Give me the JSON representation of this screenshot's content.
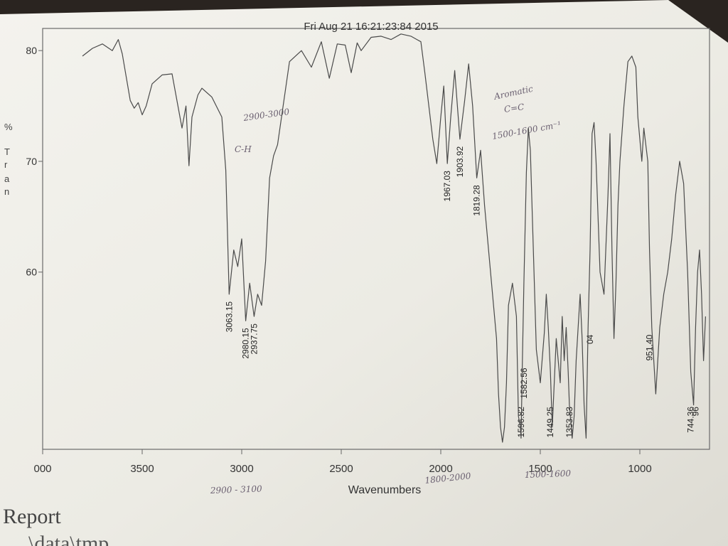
{
  "chart_data": {
    "type": "line",
    "title": "Fri Aug 21 16:21:23:84 2015",
    "xlabel": "Wavenumbers",
    "ylabel": "%T",
    "ylabel_letters": [
      "%",
      "T",
      "r",
      "a",
      "n"
    ],
    "xlim": [
      4000,
      650
    ],
    "ylim": [
      44,
      82
    ],
    "x_ticks": [
      "000",
      "3500",
      "3000",
      "2500",
      "2000",
      "1500",
      "1000"
    ],
    "y_ticks": [
      "80",
      "70",
      "60"
    ],
    "series": [
      {
        "x": [
          3800,
          3750,
          3700,
          3650,
          3620,
          3600,
          3560,
          3540,
          3520,
          3500,
          3480,
          3450,
          3400,
          3350,
          3300,
          3280,
          3265,
          3250,
          3220,
          3200,
          3150,
          3100,
          3080,
          3063.15,
          3040,
          3020,
          3000,
          2980.15,
          2960,
          2937.75,
          2920,
          2900,
          2880,
          2860,
          2840,
          2820,
          2800,
          2780,
          2760,
          2700,
          2650,
          2600,
          2560,
          2520,
          2480,
          2450,
          2420,
          2400,
          2350,
          2300,
          2250,
          2200,
          2150,
          2120,
          2100,
          2080,
          2060,
          2040,
          2020,
          2000,
          1985,
          1967.03,
          1950,
          1930,
          1903.92,
          1880,
          1860,
          1840,
          1819.28,
          1800,
          1780,
          1760,
          1740,
          1720,
          1710,
          1700,
          1690,
          1680,
          1670,
          1660,
          1640,
          1620,
          1610,
          1600,
          1596.82,
          1590,
          1582.56,
          1570,
          1560,
          1550,
          1540,
          1530,
          1520,
          1500,
          1480,
          1470,
          1460,
          1449.25,
          1440,
          1430,
          1420,
          1410,
          1400,
          1390,
          1380,
          1370,
          1360,
          1353.83,
          1340,
          1330,
          1320,
          1300,
          1290,
          1280,
          1270,
          1260,
          1250,
          1240,
          1230,
          1220,
          1200,
          1180,
          1160,
          1150,
          1140,
          1130,
          1120,
          1110,
          1100,
          1080,
          1060,
          1040,
          1020,
          1010,
          1000,
          990,
          980,
          960,
          951.4,
          940,
          920,
          900,
          880,
          860,
          840,
          820,
          800,
          780,
          760,
          744.36,
          730,
          720,
          710,
          700,
          690,
          680,
          670
        ],
        "y": [
          79.5,
          80.2,
          80.6,
          80.0,
          81.0,
          79.7,
          75.5,
          74.8,
          75.3,
          74.2,
          75.0,
          77.0,
          77.8,
          77.9,
          73.0,
          75.0,
          69.6,
          74.0,
          76.0,
          76.6,
          75.8,
          74.0,
          69.2,
          58.0,
          62.0,
          60.5,
          63.0,
          55.6,
          59.0,
          56.0,
          58.0,
          57.0,
          61.0,
          68.5,
          70.5,
          71.5,
          74.0,
          76.5,
          79.0,
          80.0,
          78.5,
          80.8,
          77.5,
          80.6,
          80.5,
          78.0,
          80.7,
          80.0,
          81.2,
          81.3,
          81.0,
          81.5,
          81.3,
          81.0,
          80.8,
          78.0,
          75.0,
          72.0,
          69.8,
          74.0,
          76.8,
          69.8,
          74.0,
          78.2,
          72.0,
          75.5,
          78.8,
          75.0,
          68.5,
          71.0,
          66.0,
          62.0,
          58.0,
          54.0,
          49.0,
          46.0,
          42.0,
          46.0,
          50.0,
          57.0,
          59.0,
          56.0,
          47.0,
          46.0,
          45.0,
          52.0,
          59.0,
          69.0,
          73.0,
          71.0,
          65.0,
          59.0,
          53.0,
          50.0,
          54.5,
          58.0,
          55.0,
          51.0,
          46.0,
          50.0,
          54.0,
          52.0,
          50.0,
          56.0,
          52.0,
          55.0,
          51.0,
          48.0,
          45.0,
          47.0,
          52.0,
          58.0,
          54.0,
          48.0,
          45.0,
          55.0,
          62.0,
          72.5,
          73.5,
          70.0,
          60.0,
          58.0,
          67.0,
          72.5,
          62.0,
          54.0,
          59.0,
          66.0,
          70.0,
          75.0,
          79.0,
          79.5,
          78.5,
          74.0,
          72.0,
          70.0,
          73.0,
          70.0,
          62.0,
          55.0,
          49.0,
          55.0,
          58.0,
          60.0,
          63.0,
          67.0,
          70.0,
          68.0,
          60.0,
          51.0,
          48.0,
          55.0,
          60.0,
          62.0,
          58.0,
          52.0,
          56.0
        ]
      }
    ],
    "peak_labels": [
      {
        "x": 3063.15,
        "label": "3063.15"
      },
      {
        "x": 2980.15,
        "label": "2980.15"
      },
      {
        "x": 2937.75,
        "label": "2937.75"
      },
      {
        "x": 1967.03,
        "label": "1967.03"
      },
      {
        "x": 1903.92,
        "label": "1903.92"
      },
      {
        "x": 1819.28,
        "label": "1819.28"
      },
      {
        "x": 1596.82,
        "label": "1596.82"
      },
      {
        "x": 1582.56,
        "label": "1582.56"
      },
      {
        "x": 1449.25,
        "label": "1449.25"
      },
      {
        "x": 1353.83,
        "label": "1353.83"
      },
      {
        "x": 1250,
        "label": "04"
      },
      {
        "x": 951.4,
        "label": "951.40"
      },
      {
        "x": 744.36,
        "label": "744.36"
      },
      {
        "x": 720,
        "label": "96"
      }
    ],
    "handwritten_notes": [
      {
        "text": "2900-3000",
        "region": "above C-H stretch peaks"
      },
      {
        "text": "C-H",
        "region": "C-H stretch region"
      },
      {
        "text": "Aromatic",
        "region": "above aromatic overtones"
      },
      {
        "text": "C=C",
        "region": "below Aromatic"
      },
      {
        "text": "1500-1600 cm⁻¹",
        "region": "aromatic C=C region"
      },
      {
        "text": "2900 - 3100",
        "region": "below x axis near 3000"
      },
      {
        "text": "1800-2000",
        "region": "below x axis near 2000"
      },
      {
        "text": "1500-1600",
        "region": "below x axis near 1500"
      }
    ],
    "grid": false,
    "legend": "none"
  },
  "footer": {
    "report_label": "Report",
    "path_text": "\\data\\tmp"
  }
}
